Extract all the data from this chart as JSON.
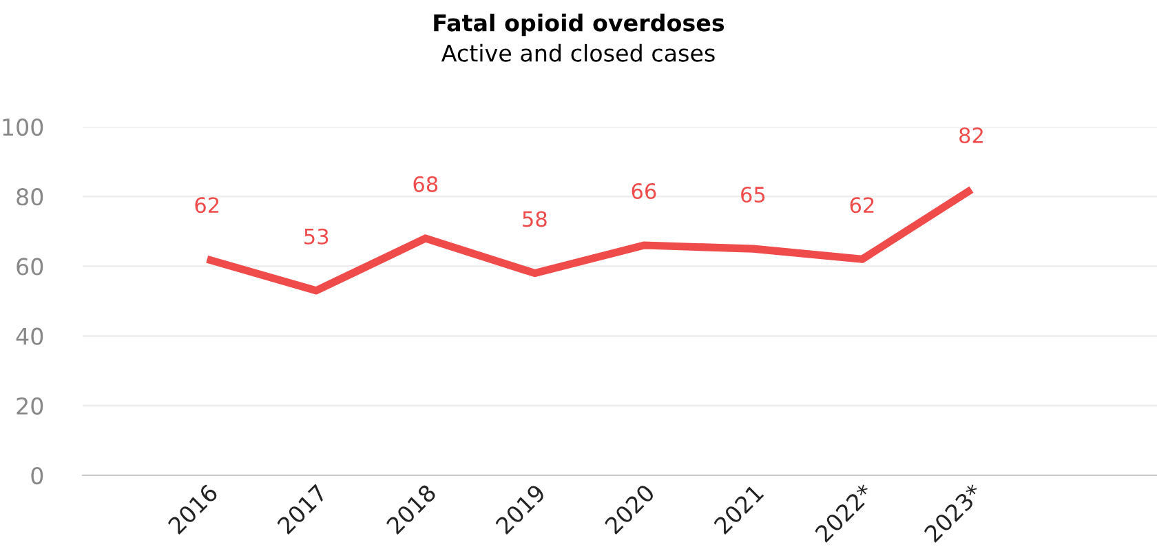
{
  "chart_data": {
    "type": "line",
    "title": "Fatal opioid overdoses",
    "subtitle": "Active and closed cases",
    "categories": [
      "2016",
      "2017",
      "2018",
      "2019",
      "2020",
      "2021",
      "2022*",
      "2023*"
    ],
    "series": [
      {
        "color": "#ef4b4b",
        "values": [
          62,
          53,
          68,
          58,
          66,
          65,
          62,
          82
        ]
      }
    ],
    "ylim": [
      0,
      100
    ],
    "yticks": [
      0,
      20,
      40,
      60,
      80,
      100
    ],
    "grid": "y",
    "data_labels": true,
    "marker": "none",
    "line_style": "solid",
    "legend": false
  }
}
